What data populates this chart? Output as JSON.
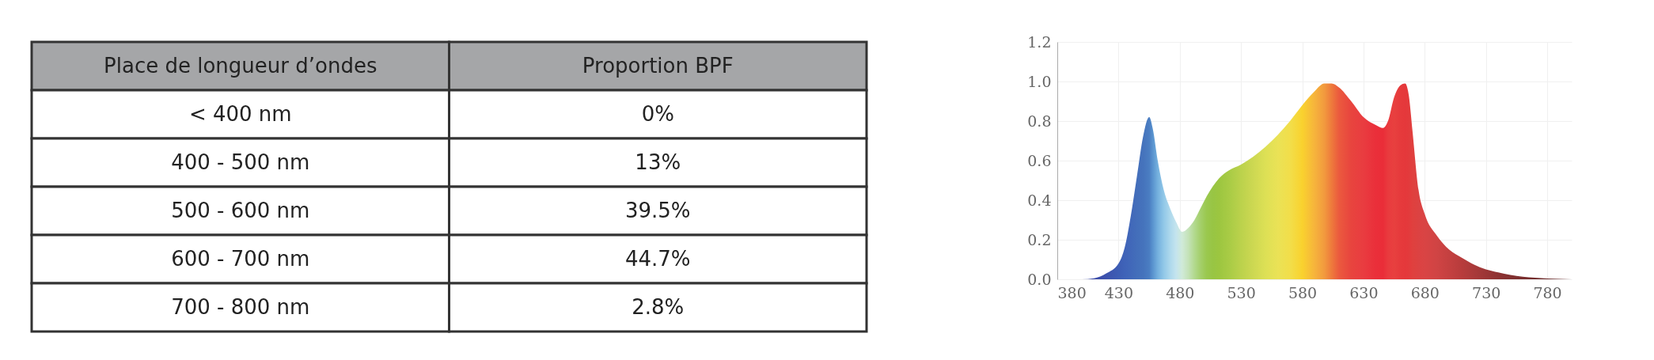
{
  "chart_data": [
    {
      "type": "other",
      "annotations": [
        "Place de longueur d’ondes",
        "Proportion BPF",
        "< 400 nm",
        "0%",
        "400 - 500 nm",
        "13%",
        "500 - 600 nm",
        "39.5%",
        "600 - 700 nm",
        "44.7%",
        "700 - 800 nm",
        "2.8%"
      ]
    },
    {
      "type": "area",
      "xlim": [
        380,
        800
      ],
      "ylim": [
        0,
        1.2
      ],
      "xticks": [
        380,
        430,
        480,
        530,
        580,
        630,
        680,
        730,
        780
      ],
      "yticks": [
        {
          "value": 0,
          "label": "0.0"
        },
        {
          "value": 0.2,
          "label": "0.2"
        },
        {
          "value": 0.4,
          "label": "0.4"
        },
        {
          "value": 0.6,
          "label": "0.6"
        },
        {
          "value": 0.8,
          "label": "0.8"
        },
        {
          "value": 1.0,
          "label": "1.0"
        },
        {
          "value": 1.2,
          "label": "1.2"
        }
      ],
      "grid": true,
      "x": [
        380,
        400,
        410,
        420,
        430,
        435,
        440,
        445,
        450,
        455,
        458,
        462,
        467,
        472,
        477,
        482,
        487,
        492,
        497,
        502,
        507,
        512,
        520,
        530,
        540,
        550,
        560,
        570,
        580,
        590,
        598,
        604,
        610,
        620,
        630,
        640,
        646,
        650,
        655,
        660,
        664,
        667,
        670,
        675,
        680,
        690,
        700,
        710,
        720,
        730,
        740,
        750,
        760,
        770,
        780,
        790,
        800
      ],
      "series": [
        {
          "values": [
            0,
            0,
            0.005,
            0.03,
            0.08,
            0.16,
            0.32,
            0.52,
            0.72,
            0.82,
            0.76,
            0.6,
            0.45,
            0.36,
            0.29,
            0.24,
            0.26,
            0.3,
            0.36,
            0.42,
            0.47,
            0.51,
            0.55,
            0.58,
            0.62,
            0.67,
            0.73,
            0.8,
            0.88,
            0.95,
            0.99,
            0.99,
            0.97,
            0.9,
            0.82,
            0.78,
            0.765,
            0.8,
            0.92,
            0.98,
            0.99,
            0.93,
            0.75,
            0.45,
            0.33,
            0.22,
            0.15,
            0.11,
            0.075,
            0.05,
            0.035,
            0.022,
            0.013,
            0.008,
            0.004,
            0.002,
            0
          ],
          "colors": [
            "#3b4aa8",
            "#3b4aa8",
            "#3b4aa8",
            "#3c52ad",
            "#3d5db4",
            "#3f63b8",
            "#4168b9",
            "#436eba",
            "#4573bc",
            "#4a7dc2",
            "#5a94cf",
            "#74b0de",
            "#92c8e8",
            "#add8ec",
            "#c4e4ee",
            "#d0ead8",
            "#c4e2b8",
            "#b2d98e",
            "#a4cf6a",
            "#9ac84e",
            "#98c544",
            "#9cc640",
            "#a8cb45",
            "#bbd24c",
            "#cdd852",
            "#dde055",
            "#eae256",
            "#f2de4a",
            "#f9d22e",
            "#f6b43c",
            "#f29a3e",
            "#ee7a3c",
            "#eb5a3e",
            "#e8443e",
            "#e93c40",
            "#ea2f3a",
            "#ea2d38",
            "#e93a3e",
            "#e8403f",
            "#e63a3c",
            "#e5383b",
            "#e33a3c",
            "#e0403e",
            "#dc4242",
            "#d94444",
            "#d04444",
            "#c44040",
            "#b83c3c",
            "#aa3a3a",
            "#9c3636",
            "#8e3232",
            "#823030",
            "#7a2e2e",
            "#722c2c",
            "#6c2a2a",
            "#662828",
            "#622828"
          ]
        }
      ]
    }
  ]
}
